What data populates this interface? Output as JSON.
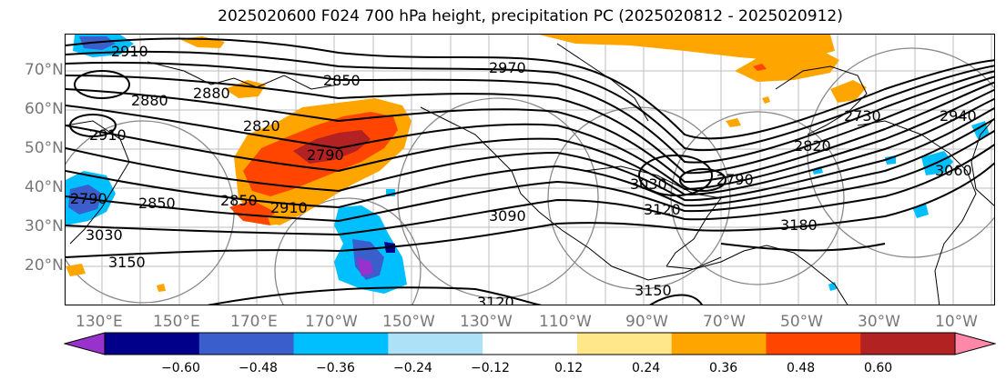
{
  "title": "2025020600 F024 700 hPa height, precipitation PC (2025020812 - 2025020912)",
  "lat_labels": [
    "70°N",
    "60°N",
    "50°N",
    "40°N",
    "30°N",
    "20°N"
  ],
  "lon_labels": [
    "130°E",
    "150°E",
    "170°E",
    "170°W",
    "150°W",
    "130°W",
    "110°W",
    "90°W",
    "70°W",
    "50°W",
    "30°W",
    "10°W"
  ],
  "contour_labels": [
    "2910",
    "2880",
    "2880",
    "2850",
    "2820",
    "2910",
    "2790",
    "2850",
    "2910",
    "2850",
    "3030",
    "3150",
    "3090",
    "2970",
    "2790",
    "2820",
    "3030",
    "3120",
    "3180",
    "3120",
    "2730",
    "3060",
    "2790",
    "2940",
    "3150"
  ],
  "colorbar": {
    "ticks": [
      "−0.60",
      "−0.48",
      "−0.36",
      "−0.24",
      "−0.12",
      "0.12",
      "0.24",
      "0.36",
      "0.48",
      "0.60"
    ],
    "colors": [
      "#9932CC",
      "#00008B",
      "#3A5FCD",
      "#00BFFF",
      "#ADE1F8",
      "#FFFFFF",
      "#FFE78A",
      "#FFA500",
      "#FF4500",
      "#B22222",
      "#FF88A8"
    ]
  }
}
